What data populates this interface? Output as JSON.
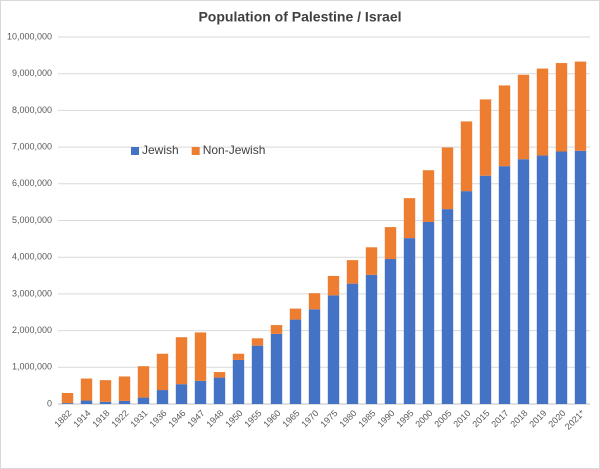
{
  "chart_data": {
    "type": "bar",
    "stacked": true,
    "title": "Population of Palestine / Israel",
    "categories": [
      "1882",
      "1914",
      "1918",
      "1922",
      "1931",
      "1936",
      "1946",
      "1947",
      "1948",
      "1950",
      "1955",
      "1960",
      "1965",
      "1970",
      "1975",
      "1980",
      "1985",
      "1990",
      "1995",
      "2000",
      "2005",
      "2010",
      "2015",
      "2017",
      "2018",
      "2019",
      "2020",
      "2021*"
    ],
    "series": [
      {
        "name": "Jewish",
        "color": "#4472c4",
        "values": [
          24000,
          94000,
          60000,
          84000,
          175000,
          380000,
          540000,
          630000,
          720000,
          1200000,
          1590000,
          1910000,
          2300000,
          2580000,
          2960000,
          3280000,
          3520000,
          3950000,
          4520000,
          4960000,
          5310000,
          5800000,
          6220000,
          6480000,
          6670000,
          6770000,
          6880000,
          6900000
        ]
      },
      {
        "name": "Non-Jewish",
        "color": "#ed7d31",
        "values": [
          276000,
          600000,
          590000,
          666000,
          855000,
          990000,
          1280000,
          1320000,
          150000,
          170000,
          200000,
          240000,
          300000,
          440000,
          530000,
          640000,
          750000,
          870000,
          1090000,
          1410000,
          1680000,
          1900000,
          2080000,
          2200000,
          2300000,
          2370000,
          2410000,
          2430000
        ]
      }
    ],
    "ylim": [
      0,
      10000000
    ],
    "yticks": [
      0,
      {
        "value": 1000000,
        "label": "1,000,000"
      },
      {
        "value": 2000000,
        "label": "2,000,000"
      },
      {
        "value": 3000000,
        "label": "3,000,000"
      },
      {
        "value": 4000000,
        "label": "4,000,000"
      },
      {
        "value": 5000000,
        "label": "5,000,000"
      },
      {
        "value": 6000000,
        "label": "6,000,000"
      },
      {
        "value": 7000000,
        "label": "7,000,000"
      },
      {
        "value": 8000000,
        "label": "8,000,000"
      },
      {
        "value": 9000000,
        "label": "9,000,000"
      },
      {
        "value": 10000000,
        "label": "10,000,000"
      }
    ],
    "grid": true,
    "legend": "left"
  }
}
